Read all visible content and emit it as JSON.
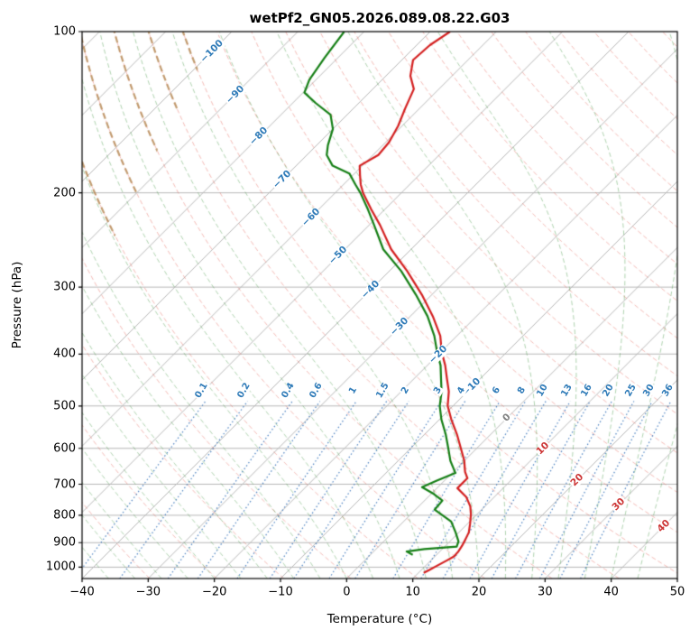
{
  "figure": {
    "title": "wetPf2_GN05.2026.089.08.22.G03",
    "x_axis": {
      "label": "Temperature (°C)",
      "min": -40,
      "max": 50,
      "ticks": [
        -40,
        -30,
        -20,
        -10,
        0,
        10,
        20,
        30,
        40,
        50
      ]
    },
    "y_axis": {
      "label": "Pressure (hPa)",
      "min": 100,
      "max": 1050,
      "scale": "log",
      "ticks": [
        100,
        200,
        300,
        400,
        500,
        600,
        700,
        800,
        900,
        1000
      ]
    }
  },
  "chart_data": {
    "type": "line",
    "variant": "skew-t-log-p-sounding",
    "title": "wetPf2_GN05.2026.089.08.22.G03",
    "xlabel": "Temperature (°C)",
    "ylabel": "Pressure (hPa)",
    "xlim": [
      -40,
      50
    ],
    "ylim": [
      1050,
      100
    ],
    "skew_degrees": 45,
    "grid": "on",
    "series": [
      {
        "name": "temperature",
        "color": "#d42020",
        "points_p_t": [
          [
            100,
            -67
          ],
          [
            106,
            -68
          ],
          [
            113,
            -68.3
          ],
          [
            121,
            -66.3
          ],
          [
            128,
            -63.8
          ],
          [
            139,
            -62.2
          ],
          [
            150,
            -60.6
          ],
          [
            161,
            -59.5
          ],
          [
            170,
            -59.2
          ],
          [
            178,
            -60.4
          ],
          [
            185,
            -59
          ],
          [
            193,
            -57.4
          ],
          [
            200,
            -55.8
          ],
          [
            215,
            -52
          ],
          [
            230,
            -48.3
          ],
          [
            255,
            -43
          ],
          [
            280,
            -37.3
          ],
          [
            310,
            -31.5
          ],
          [
            340,
            -26.6
          ],
          [
            370,
            -22.5
          ],
          [
            397,
            -19.8
          ],
          [
            420,
            -17.3
          ],
          [
            445,
            -15
          ],
          [
            470,
            -12.8
          ],
          [
            500,
            -10.8
          ],
          [
            530,
            -8.2
          ],
          [
            565,
            -5.1
          ],
          [
            600,
            -2.4
          ],
          [
            633,
            0
          ],
          [
            664,
            1.8
          ],
          [
            682,
            3.1
          ],
          [
            712,
            3.1
          ],
          [
            740,
            5.8
          ],
          [
            770,
            7.8
          ],
          [
            797,
            9.1
          ],
          [
            830,
            10.4
          ],
          [
            861,
            11.5
          ],
          [
            890,
            12.1
          ],
          [
            912,
            12.5
          ],
          [
            935,
            12.8
          ],
          [
            955,
            12.9
          ],
          [
            972,
            12.4
          ],
          [
            995,
            11.7
          ],
          [
            1012,
            11.2
          ],
          [
            1025,
            10.8
          ]
        ]
      },
      {
        "name": "dewpoint",
        "color": "#157f15",
        "points_p_t": [
          [
            100,
            -83
          ],
          [
            112,
            -82
          ],
          [
            123,
            -81
          ],
          [
            130,
            -79.8
          ],
          [
            136,
            -76.5
          ],
          [
            143,
            -72.5
          ],
          [
            152,
            -70
          ],
          [
            163,
            -68.3
          ],
          [
            170,
            -67
          ],
          [
            178,
            -64.5
          ],
          [
            184,
            -60.8
          ],
          [
            193,
            -58.2
          ],
          [
            200,
            -56.2
          ],
          [
            215,
            -52.5
          ],
          [
            230,
            -49.2
          ],
          [
            255,
            -44.2
          ],
          [
            280,
            -38.2
          ],
          [
            310,
            -32.4
          ],
          [
            340,
            -27.4
          ],
          [
            370,
            -23.4
          ],
          [
            397,
            -20.5
          ],
          [
            420,
            -18
          ],
          [
            445,
            -15.9
          ],
          [
            470,
            -13.9
          ],
          [
            500,
            -12
          ],
          [
            530,
            -9.7
          ],
          [
            565,
            -6.8
          ],
          [
            600,
            -4.3
          ],
          [
            633,
            -2.1
          ],
          [
            667,
            0.5
          ],
          [
            690,
            -1.2
          ],
          [
            709,
            -2.4
          ],
          [
            730,
            0.4
          ],
          [
            751,
            2.7
          ],
          [
            781,
            2.9
          ],
          [
            822,
            7.2
          ],
          [
            861,
            9.5
          ],
          [
            895,
            11.3
          ],
          [
            915,
            11.8
          ],
          [
            925,
            7.3
          ],
          [
            935,
            5
          ],
          [
            948,
            6.4
          ]
        ]
      }
    ],
    "isotherms": {
      "t_start": -160,
      "t_end": 50,
      "step": 10,
      "color": "#b8b8b8"
    },
    "isotherm_labels": [
      {
        "t": -100,
        "p": 109
      },
      {
        "t": -90,
        "p": 131
      },
      {
        "t": -80,
        "p": 157
      },
      {
        "t": -70,
        "p": 189
      },
      {
        "t": -60,
        "p": 222
      },
      {
        "t": -50,
        "p": 262
      },
      {
        "t": -40,
        "p": 303
      },
      {
        "t": -30,
        "p": 356
      },
      {
        "t": -20,
        "p": 401
      },
      {
        "t": -10,
        "p": 461
      },
      {
        "t": 0,
        "p": 526
      },
      {
        "t": 10,
        "p": 600
      },
      {
        "t": 20,
        "p": 687
      },
      {
        "t": 30,
        "p": 764
      },
      {
        "t": 40,
        "p": 838
      }
    ],
    "isotherm_label_colors": {
      "negative": "#2f7bb8",
      "zero": "#808080",
      "positive": "#cc3333"
    },
    "dry_adiabats": {
      "theta_start_K": 230,
      "theta_end_K": 530,
      "step_K": 10,
      "color": "rgba(228,94,80,0.42)"
    },
    "tan_dry_adiabats": {
      "thetas_K": [
        280,
        290,
        300,
        310,
        320,
        330
      ],
      "color": "rgba(185,142,92,0.85)"
    },
    "moist_adiabats": {
      "t_start_C": -40,
      "t_end_C": 44,
      "step_C": 4,
      "color": "rgba(44,140,44,0.38)"
    },
    "mixing_ratio_lines": {
      "values_g_kg": [
        0.1,
        0.2,
        0.4,
        0.6,
        1,
        1.5,
        2,
        3,
        4,
        6,
        8,
        10,
        13,
        16,
        20,
        25,
        30,
        36
      ],
      "label_pressure_hPa": 500,
      "top_pressure_hPa": 490,
      "color": "#2f7bb8",
      "line_color": "rgba(47,110,185,0.85)"
    }
  }
}
